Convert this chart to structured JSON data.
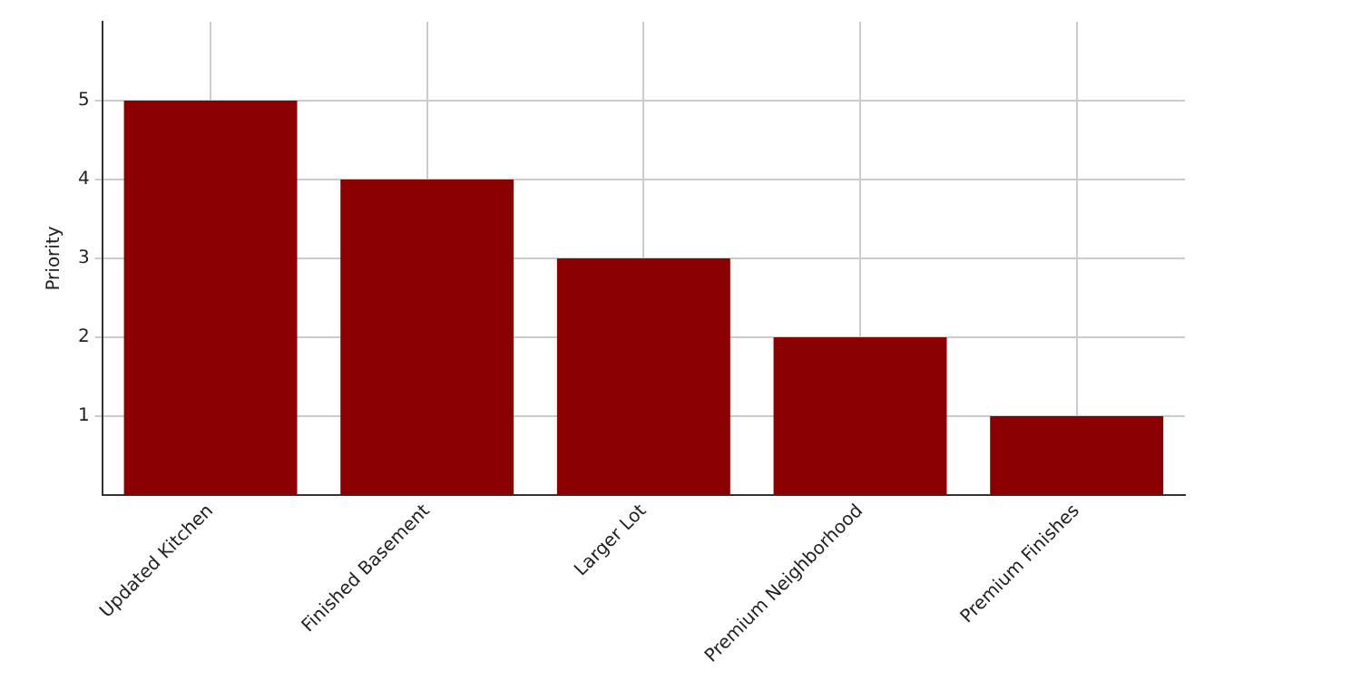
{
  "chart_data": {
    "type": "bar",
    "ylabel": "Priority",
    "categories": [
      "Updated Kitchen",
      "Finished Basement",
      "Larger Lot",
      "Premium Neighborhood",
      "Premium Finishes"
    ],
    "values": [
      5,
      4,
      3,
      2,
      1
    ],
    "color": "#8b0000",
    "ylim": [
      0,
      6
    ],
    "yticks": [
      1,
      2,
      3,
      4,
      5
    ],
    "grid": true
  }
}
